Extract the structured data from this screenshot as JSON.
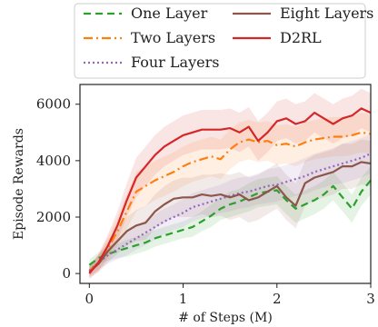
{
  "chart_data": {
    "type": "line",
    "xlabel": "# of Steps (M)",
    "ylabel": "Episode Rewards",
    "xlim": [
      -0.1,
      3.0
    ],
    "ylim": [
      -350,
      6700
    ],
    "xticks": [
      0,
      1,
      2,
      3
    ],
    "yticks": [
      0,
      2000,
      4000,
      6000
    ],
    "grid": false,
    "legend_placement": "top, outside",
    "series": [
      {
        "name": "One Layer",
        "color": "#2ca02c",
        "dash": "8,5",
        "x": [
          0,
          0.1,
          0.2,
          0.3,
          0.4,
          0.5,
          0.6,
          0.7,
          0.8,
          0.9,
          1.0,
          1.1,
          1.2,
          1.3,
          1.4,
          1.5,
          1.6,
          1.7,
          1.8,
          1.9,
          2.0,
          2.1,
          2.2,
          2.3,
          2.4,
          2.5,
          2.6,
          2.7,
          2.8,
          2.9,
          3.0
        ],
        "y": [
          300,
          550,
          700,
          800,
          900,
          1000,
          1100,
          1250,
          1350,
          1450,
          1550,
          1650,
          1850,
          2050,
          2300,
          2450,
          2550,
          2700,
          2850,
          2900,
          2950,
          2600,
          2300,
          2450,
          2600,
          2800,
          3100,
          2700,
          2300,
          2900,
          3300
        ],
        "band": [
          200,
          200,
          250,
          250,
          300,
          300,
          300,
          300,
          300,
          300,
          300,
          350,
          350,
          400,
          400,
          450,
          450,
          500,
          500,
          500,
          500,
          500,
          500,
          500,
          500,
          500,
          500,
          500,
          500,
          500,
          500
        ]
      },
      {
        "name": "Two Layers",
        "color": "#ff7f0e",
        "dash": "10,4,2,4",
        "x": [
          0,
          0.1,
          0.2,
          0.3,
          0.4,
          0.5,
          0.6,
          0.7,
          0.8,
          0.9,
          1.0,
          1.1,
          1.2,
          1.3,
          1.4,
          1.5,
          1.6,
          1.7,
          1.8,
          1.9,
          2.0,
          2.1,
          2.2,
          2.3,
          2.4,
          2.5,
          2.6,
          2.7,
          2.8,
          2.9,
          3.0
        ],
        "y": [
          100,
          400,
          900,
          1500,
          2200,
          2900,
          3100,
          3300,
          3450,
          3600,
          3800,
          3950,
          4050,
          4150,
          4050,
          4400,
          4650,
          4750,
          4650,
          4700,
          4550,
          4600,
          4500,
          4650,
          4750,
          4800,
          4850,
          4850,
          4900,
          5000,
          4950
        ],
        "band": [
          200,
          300,
          400,
          500,
          600,
          700,
          700,
          700,
          700,
          700,
          700,
          700,
          700,
          700,
          700,
          700,
          700,
          700,
          700,
          700,
          700,
          700,
          700,
          700,
          700,
          700,
          700,
          700,
          700,
          700,
          700
        ]
      },
      {
        "name": "Four Layers",
        "color": "#9467bd",
        "dash": "2,3",
        "x": [
          0,
          0.1,
          0.2,
          0.3,
          0.4,
          0.5,
          0.6,
          0.7,
          0.8,
          0.9,
          1.0,
          1.1,
          1.2,
          1.3,
          1.4,
          1.5,
          1.6,
          1.7,
          1.8,
          1.9,
          2.0,
          2.1,
          2.2,
          2.3,
          2.4,
          2.5,
          2.6,
          2.7,
          2.8,
          2.9,
          3.0
        ],
        "y": [
          100,
          400,
          650,
          850,
          1050,
          1250,
          1450,
          1650,
          1850,
          2000,
          2150,
          2350,
          2450,
          2550,
          2650,
          2750,
          2850,
          2900,
          3000,
          3100,
          3150,
          3250,
          3350,
          3450,
          3600,
          3700,
          3800,
          3900,
          4000,
          4100,
          4250
        ],
        "band": [
          200,
          250,
          300,
          350,
          400,
          400,
          450,
          450,
          450,
          450,
          500,
          500,
          500,
          500,
          500,
          550,
          550,
          550,
          550,
          600,
          600,
          600,
          600,
          650,
          650,
          650,
          650,
          700,
          700,
          700,
          700
        ]
      },
      {
        "name": "Eight Layers",
        "color": "#8c564b",
        "dash": "",
        "x": [
          0,
          0.1,
          0.2,
          0.3,
          0.4,
          0.5,
          0.6,
          0.7,
          0.8,
          0.9,
          1.0,
          1.1,
          1.2,
          1.3,
          1.4,
          1.5,
          1.6,
          1.7,
          1.8,
          1.9,
          2.0,
          2.1,
          2.2,
          2.3,
          2.4,
          2.5,
          2.6,
          2.7,
          2.8,
          2.9,
          3.0
        ],
        "y": [
          50,
          350,
          800,
          1150,
          1500,
          1700,
          1800,
          2200,
          2450,
          2650,
          2700,
          2700,
          2800,
          2750,
          2800,
          2700,
          2800,
          2600,
          2700,
          2900,
          3100,
          2700,
          2400,
          3200,
          3400,
          3500,
          3600,
          3800,
          3800,
          3950,
          3900
        ],
        "band": [
          200,
          300,
          400,
          450,
          500,
          550,
          600,
          600,
          650,
          650,
          700,
          700,
          700,
          750,
          750,
          800,
          800,
          800,
          800,
          800,
          800,
          800,
          800,
          800,
          800,
          800,
          800,
          800,
          800,
          800,
          800
        ]
      },
      {
        "name": "D2RL",
        "color": "#d62728",
        "dash": "",
        "x": [
          0,
          0.1,
          0.2,
          0.3,
          0.4,
          0.5,
          0.6,
          0.7,
          0.8,
          0.9,
          1.0,
          1.1,
          1.2,
          1.3,
          1.4,
          1.5,
          1.6,
          1.7,
          1.8,
          1.9,
          2.0,
          2.1,
          2.2,
          2.3,
          2.4,
          2.5,
          2.6,
          2.7,
          2.8,
          2.9,
          3.0
        ],
        "y": [
          0,
          400,
          1000,
          1700,
          2600,
          3400,
          3800,
          4200,
          4500,
          4700,
          4900,
          5000,
          5100,
          5100,
          5100,
          5150,
          5000,
          5200,
          4700,
          5000,
          5400,
          5500,
          5300,
          5400,
          5700,
          5500,
          5300,
          5500,
          5600,
          5850,
          5700
        ],
        "band": [
          200,
          300,
          400,
          500,
          600,
          700,
          700,
          700,
          700,
          700,
          700,
          700,
          700,
          700,
          700,
          700,
          700,
          700,
          700,
          700,
          700,
          700,
          700,
          700,
          700,
          700,
          700,
          700,
          700,
          700,
          700
        ]
      }
    ]
  }
}
